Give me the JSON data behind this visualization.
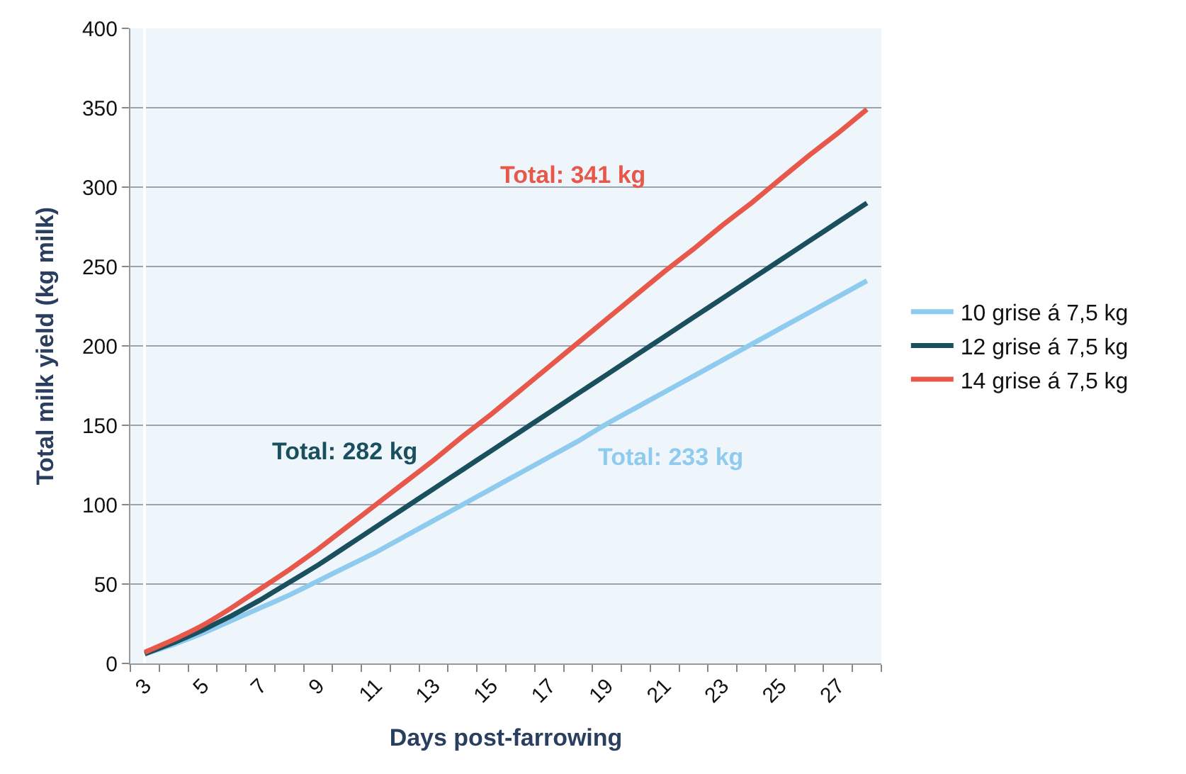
{
  "chart_data": {
    "type": "line",
    "xlabel": "Days post-farrowing",
    "ylabel": "Total milk yield (kg milk)",
    "categories": [
      "3",
      null,
      "5",
      null,
      "7",
      null,
      "9",
      null,
      "11",
      null,
      "13",
      null,
      "15",
      null,
      "17",
      null,
      "19",
      null,
      "21",
      null,
      "23",
      null,
      "25",
      null,
      "27",
      null
    ],
    "series": [
      {
        "name": "10 grise á 7,5 kg",
        "color": "#8ecbef",
        "values": [
          6,
          12,
          19,
          27,
          35,
          43,
          52,
          61,
          70,
          80,
          90,
          100,
          110,
          120,
          130,
          140,
          151,
          161,
          171,
          181,
          191,
          201,
          211,
          221,
          231,
          241
        ]
      },
      {
        "name": "12 grise á 7,5 kg",
        "color": "#1a4f5e",
        "values": [
          6,
          13,
          21,
          30,
          40,
          51,
          62,
          74,
          86,
          98,
          110,
          122,
          134,
          146,
          158,
          170,
          182,
          194,
          206,
          218,
          230,
          242,
          254,
          266,
          278,
          290
        ]
      },
      {
        "name": "14 grise á 7,5 kg",
        "color": "#e8584a",
        "values": [
          7,
          15,
          24,
          35,
          47,
          59,
          72,
          86,
          100,
          114,
          128,
          143,
          157,
          172,
          187,
          202,
          217,
          232,
          247,
          261,
          276,
          290,
          305,
          320,
          334,
          349
        ]
      }
    ],
    "annotations": [
      "Total: 341 kg",
      "Total: 282 kg",
      "Total: 233 kg"
    ],
    "ylim": [
      0,
      400
    ],
    "yticks": [
      0,
      50,
      100,
      150,
      200,
      250,
      300,
      350,
      400
    ],
    "grid": "y",
    "legend": "right",
    "marker": "none",
    "line_style": "solid"
  }
}
